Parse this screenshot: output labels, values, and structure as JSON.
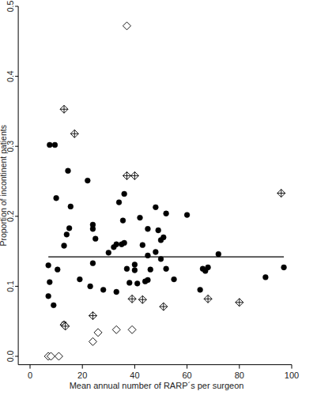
{
  "chart_data": {
    "type": "scatter",
    "x_label": "Mean annual number of RARP´s per surgeon",
    "y_label": "Proportion of incontinent patients",
    "xlim": [
      -4.5,
      100
    ],
    "ylim": [
      -0.012,
      0.5
    ],
    "xticks": [
      0,
      20,
      40,
      60,
      80,
      100
    ],
    "yticks": [
      {
        "value": 0,
        "label": "0.0"
      },
      0.1,
      0.2,
      0.3,
      0.4,
      0.5
    ],
    "hline": 0.142,
    "hline_x": [
      7,
      97
    ],
    "series": [
      {
        "marker": "circle",
        "color": "#000000",
        "x": [
          7.5,
          9.5,
          7,
          7.5,
          7,
          9,
          10,
          10.5,
          13,
          14,
          14.5,
          15,
          15.5,
          13,
          19,
          22,
          23,
          24,
          24,
          24,
          25,
          28,
          30,
          32,
          33,
          33,
          34,
          35,
          35.5,
          36,
          36,
          37,
          38,
          40,
          40,
          41,
          42,
          43,
          44,
          45,
          45,
          45,
          46,
          48,
          48,
          49,
          50,
          50,
          51,
          52,
          52,
          55,
          60,
          65,
          66,
          67,
          68,
          72,
          90,
          97
        ],
        "values": [
          0.302,
          0.302,
          0.13,
          0.106,
          0.086,
          0.073,
          0.226,
          0.124,
          0.158,
          0.174,
          0.265,
          0.183,
          0.214,
          0.046,
          0.11,
          0.251,
          0.1,
          0.182,
          0.188,
          0.133,
          0.168,
          0.095,
          0.148,
          0.156,
          0.092,
          0.16,
          0.22,
          0.16,
          0.194,
          0.232,
          0.162,
          0.125,
          0.105,
          0.131,
          0.123,
          0.104,
          0.198,
          0.159,
          0.107,
          0.109,
          0.144,
          0.182,
          0.124,
          0.213,
          0.149,
          0.18,
          0.166,
          0.139,
          0.17,
          0.204,
          0.125,
          0.11,
          0.202,
          0.095,
          0.125,
          0.122,
          0.127,
          0.146,
          0.113,
          0.127
        ]
      },
      {
        "marker": "diamond-cross",
        "color": "#000000",
        "x": [
          13,
          17,
          13,
          13.5,
          24,
          37,
          40,
          39,
          43,
          51,
          68,
          80,
          96
        ],
        "values": [
          0.353,
          0.318,
          0.045,
          0.043,
          0.058,
          0.258,
          0.258,
          0.082,
          0.081,
          0.071,
          0.082,
          0.077,
          0.233
        ]
      },
      {
        "marker": "diamond",
        "color": "#000000",
        "x": [
          37,
          7,
          8,
          11,
          24,
          26,
          33,
          39
        ],
        "values": [
          0.472,
          0.0,
          0.0,
          0.0,
          0.021,
          0.034,
          0.038,
          0.038
        ]
      }
    ]
  }
}
